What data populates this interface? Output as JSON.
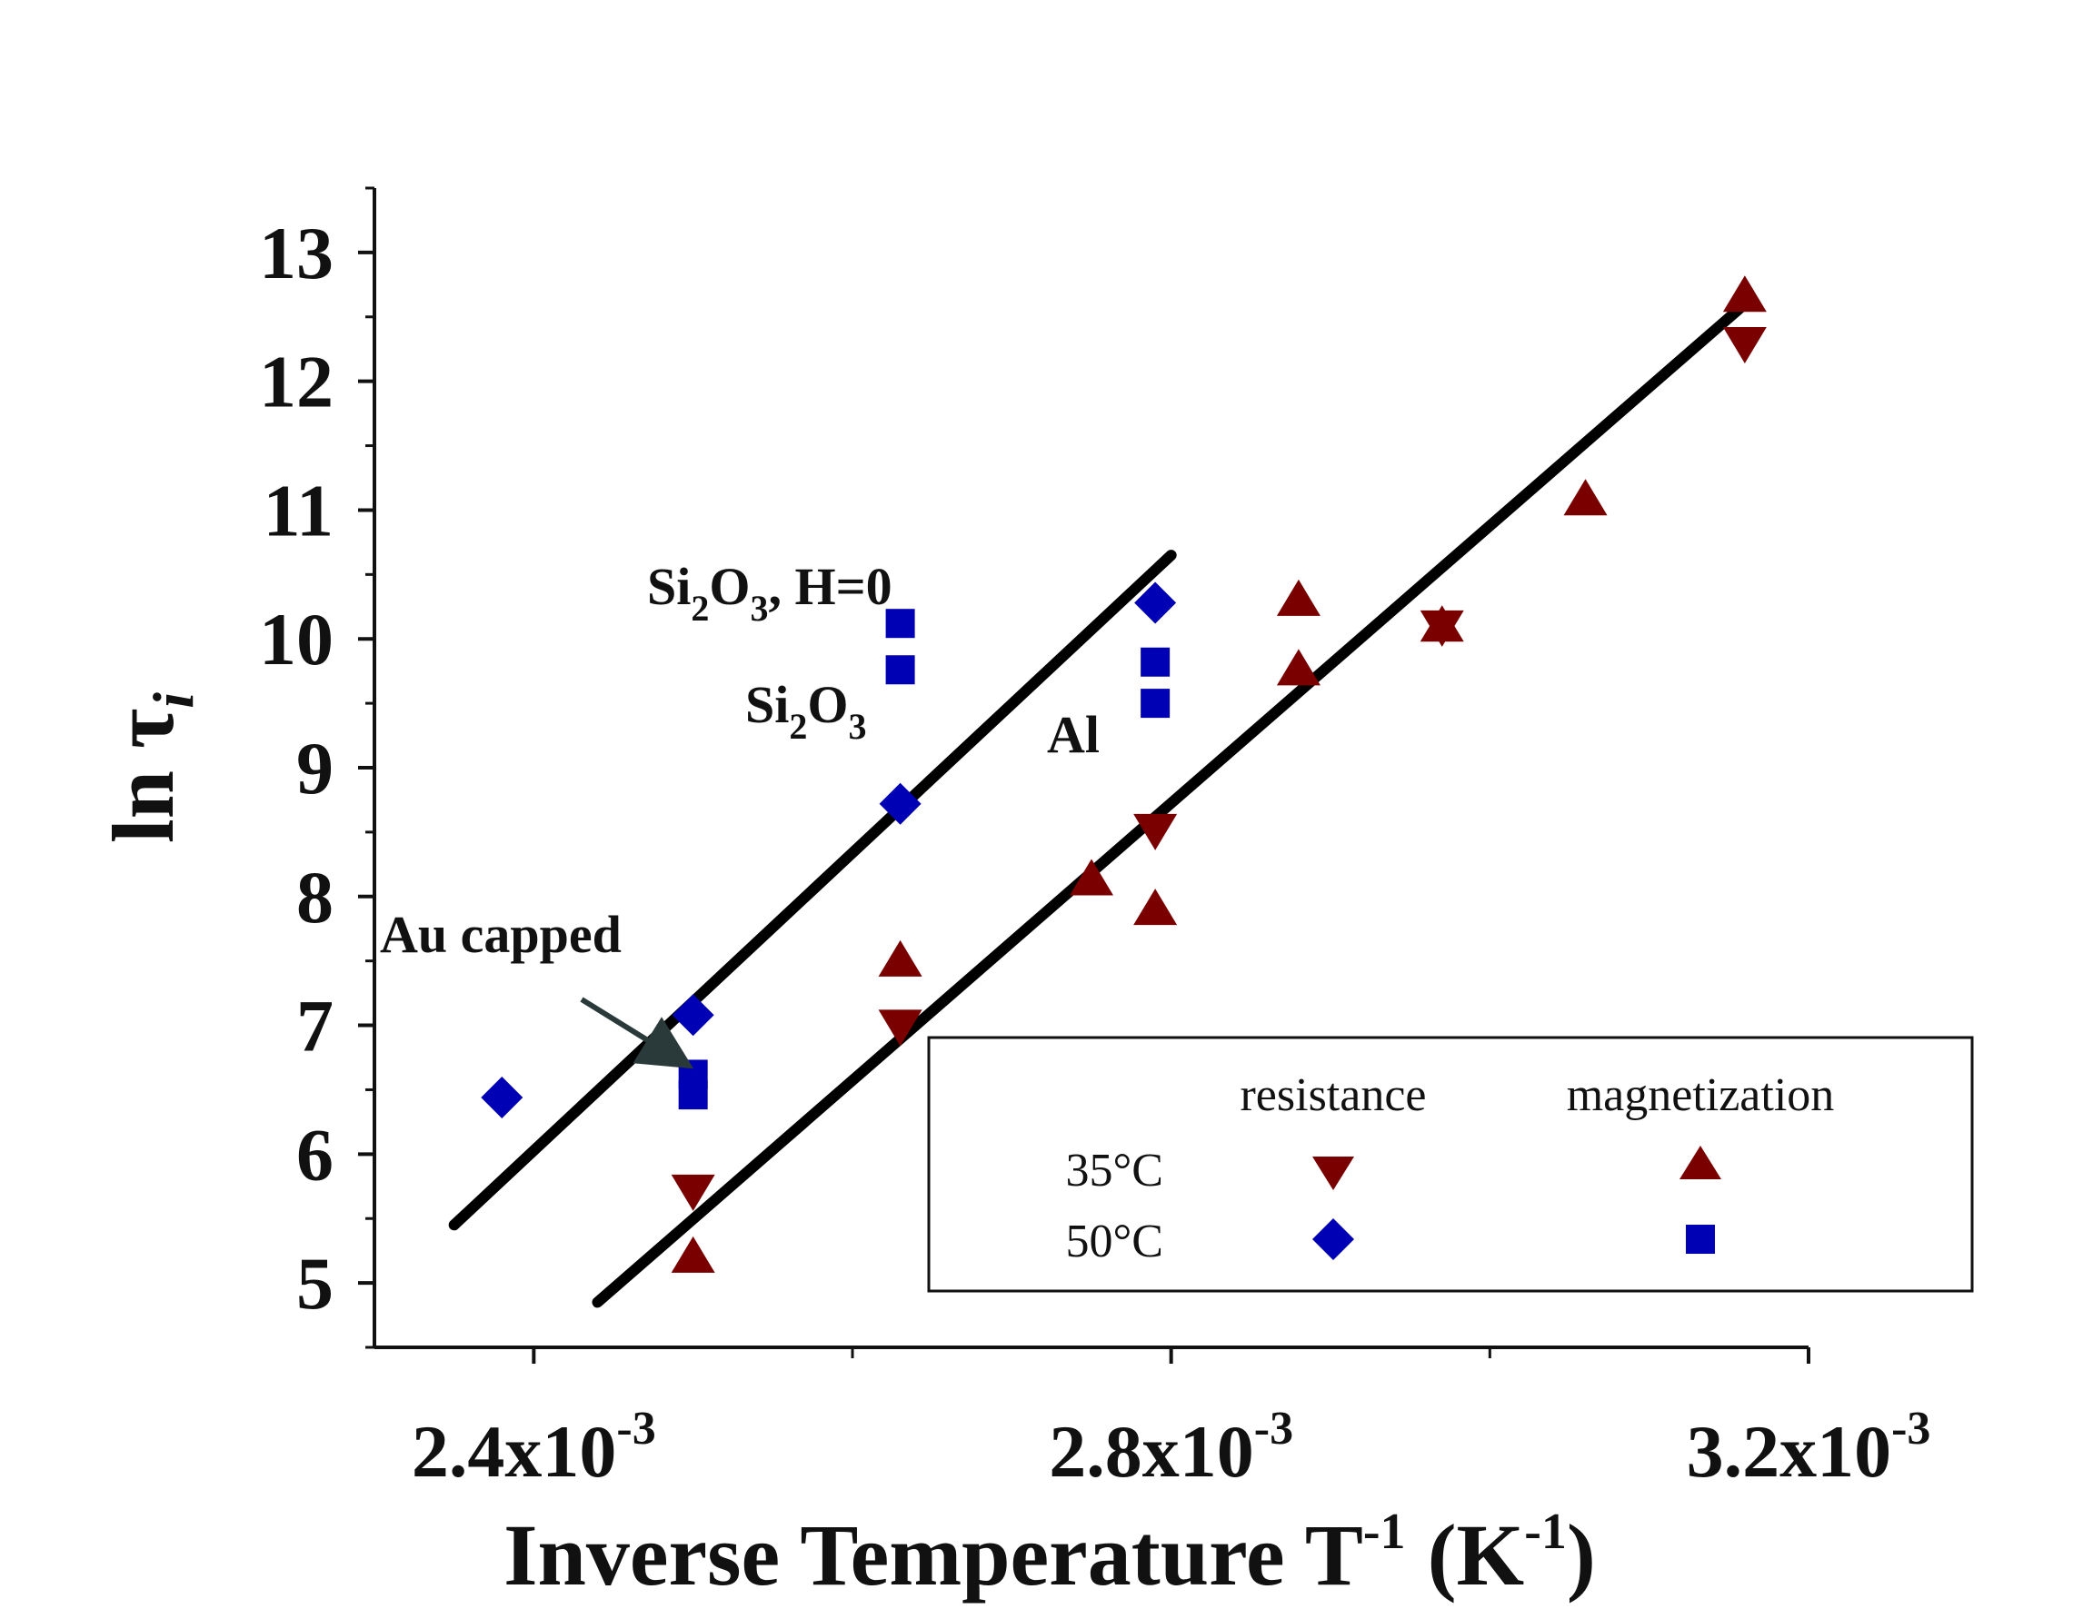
{
  "chart_data": {
    "type": "scatter",
    "xlabel": "Inverse Temperature T",
    "xlabel_sup": "-1",
    "xlabel_unit_prefix": " (K",
    "xlabel_unit_sup": "-1",
    "xlabel_unit_suffix": ")",
    "ylabel": "ln τ",
    "ylabel_sub": "i",
    "xlim": [
      0.0023,
      0.0032
    ],
    "ylim": [
      4.5,
      13.5
    ],
    "x_ticks": [
      {
        "value": 0.0024,
        "mantissa": "2.4x10",
        "exp": "-3"
      },
      {
        "value": 0.0028,
        "mantissa": "2.8x10",
        "exp": "-3"
      },
      {
        "value": 0.0032,
        "mantissa": "3.2x10",
        "exp": "-3"
      }
    ],
    "x_minor_ticks": [
      0.0026,
      0.003
    ],
    "y_ticks": [
      {
        "value": 5,
        "label": "5"
      },
      {
        "value": 6,
        "label": "6"
      },
      {
        "value": 7,
        "label": "7"
      },
      {
        "value": 8,
        "label": "8"
      },
      {
        "value": 9,
        "label": "9"
      },
      {
        "value": 10,
        "label": "10"
      },
      {
        "value": 11,
        "label": "11"
      },
      {
        "value": 12,
        "label": "12"
      },
      {
        "value": 13,
        "label": "13"
      }
    ],
    "y_minor_ticks": [
      4.5,
      5.5,
      6.5,
      7.5,
      8.5,
      9.5,
      10.5,
      11.5,
      12.5,
      13.5
    ],
    "series": [
      {
        "name": "35°C resistance",
        "marker": "triangle-down",
        "color": "#7a0000",
        "points": [
          [
            0.0025,
            5.7
          ],
          [
            0.00263,
            6.98
          ],
          [
            0.00279,
            8.5
          ],
          [
            0.00297,
            10.08
          ],
          [
            0.00316,
            12.28
          ]
        ]
      },
      {
        "name": "35°C magnetization",
        "marker": "triangle-up",
        "color": "#7a0000",
        "points": [
          [
            0.0025,
            5.22
          ],
          [
            0.00263,
            7.52
          ],
          [
            0.00275,
            8.15
          ],
          [
            0.00279,
            7.92
          ],
          [
            0.00288,
            10.32
          ],
          [
            0.00288,
            9.78
          ],
          [
            0.00297,
            10.12
          ],
          [
            0.00306,
            11.1
          ],
          [
            0.00316,
            12.68
          ]
        ]
      },
      {
        "name": "50°C resistance",
        "marker": "diamond",
        "color": "#0000b4",
        "points": [
          [
            0.00238,
            6.44
          ],
          [
            0.0025,
            7.08
          ],
          [
            0.00263,
            8.72
          ],
          [
            0.00279,
            10.28
          ]
        ]
      },
      {
        "name": "50°C magnetization",
        "marker": "square",
        "color": "#0000b4",
        "points": [
          [
            0.0025,
            6.62
          ],
          [
            0.0025,
            6.46
          ],
          [
            0.00263,
            10.12
          ],
          [
            0.00263,
            9.76
          ],
          [
            0.00279,
            9.82
          ],
          [
            0.00279,
            9.5
          ]
        ]
      }
    ],
    "fit_lines": [
      {
        "name": "fit-50C",
        "x": [
          0.00235,
          0.0028
        ],
        "y": [
          5.45,
          10.65
        ]
      },
      {
        "name": "fit-35C",
        "x": [
          0.00244,
          0.00316
        ],
        "y": [
          4.85,
          12.6
        ]
      }
    ],
    "annotations": {
      "si2o3_h0": {
        "a": "Si",
        "sub1": "2",
        "b": "O",
        "sub2": "3",
        "c": ", H=0"
      },
      "si2o3": {
        "a": "Si",
        "sub1": "2",
        "b": "O",
        "sub2": "3"
      },
      "al": "Al",
      "au_capped": "Au capped"
    },
    "legend": {
      "position": "bottom-right",
      "col_resistance": "resistance",
      "col_magnetization": "magnetization",
      "row_35": "35°C",
      "row_50": "50°C"
    },
    "colors": {
      "dark_red": "#7a0000",
      "blue": "#0000b4",
      "line": "#000000",
      "arrow": "#2a3a3a"
    }
  }
}
